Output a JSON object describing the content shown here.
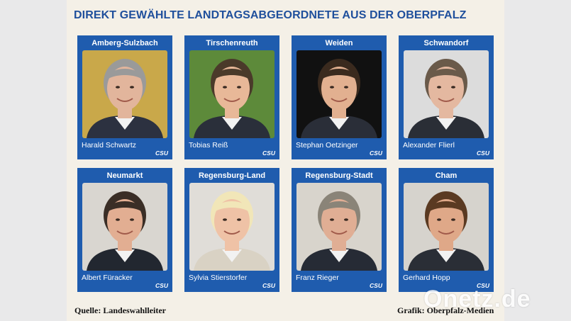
{
  "header": {
    "title": "DIREKT GEWÄHLTE LANDTAGSABGEORDNETE AUS DER OBERPFALZ"
  },
  "cards": [
    {
      "region": "Amberg-Sulzbach",
      "name": "Harald Schwartz",
      "party": "CSU",
      "bg": "#c9a84a",
      "hair": "#9a9a9a",
      "suit": "#2c3140",
      "skin": "#e2b59c"
    },
    {
      "region": "Tirschenreuth",
      "name": "Tobias Reiß",
      "party": "CSU",
      "bg": "#5d8a3a",
      "hair": "#4a3a2a",
      "suit": "#2a2f3a",
      "skin": "#e8b898"
    },
    {
      "region": "Weiden",
      "name": "Stephan Oetzinger",
      "party": "CSU",
      "bg": "#111111",
      "hair": "#3a2a1e",
      "suit": "#2a2e38",
      "skin": "#e2b090"
    },
    {
      "region": "Schwandorf",
      "name": "Alexander Flierl",
      "party": "CSU",
      "bg": "#dcdcdc",
      "hair": "#6a5a4a",
      "suit": "#2a2e36",
      "skin": "#e4b8a0"
    },
    {
      "region": "Neumarkt",
      "name": "Albert Füracker",
      "party": "CSU",
      "bg": "#d9d6d0",
      "hair": "#3a2e26",
      "suit": "#222730",
      "skin": "#e2ae92"
    },
    {
      "region": "Regensburg-Land",
      "name": "Sylvia Stierstorfer",
      "party": "CSU",
      "bg": "#e0ddd8",
      "hair": "#f1e6b8",
      "suit": "#d9d2c4",
      "skin": "#efc2a6"
    },
    {
      "region": "Regensburg-Stadt",
      "name": "Franz Rieger",
      "party": "CSU",
      "bg": "#d8d4cc",
      "hair": "#8a8478",
      "suit": "#262b35",
      "skin": "#e0ae94"
    },
    {
      "region": "Cham",
      "name": "Gerhard Hopp",
      "party": "CSU",
      "bg": "#d6d3cd",
      "hair": "#5a3a22",
      "suit": "#2a2e36",
      "skin": "#dfa888"
    }
  ],
  "footer": {
    "source": "Quelle: Landeswahlleiter",
    "credit": "Grafik: Oberpfalz-Medien"
  },
  "watermark": {
    "text": "Onetz.de"
  },
  "colors": {
    "card_blue": "#1f5cae",
    "title_blue": "#1f4f9c",
    "panel_bg": "#f4f0e7"
  }
}
